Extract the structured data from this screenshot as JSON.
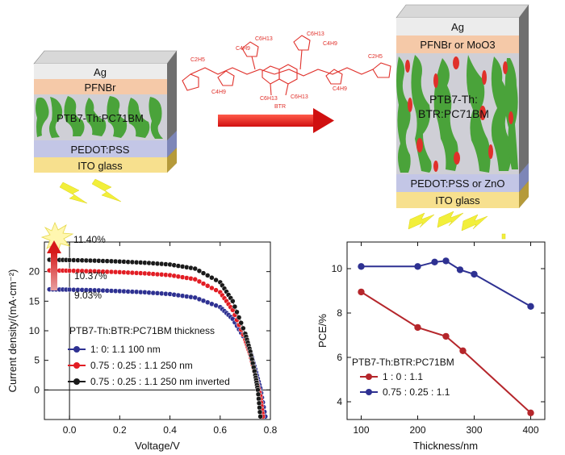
{
  "left_device": {
    "layers": [
      "Ag",
      "PFNBr",
      "PTB7-Th:PC71BM",
      "PEDOT:PSS",
      "ITO glass"
    ]
  },
  "right_device": {
    "layers": [
      "Ag",
      "PFNBr or MoO3",
      "PTB7-Th:",
      "BTR:PC71BM",
      "PEDOT:PSS or ZnO",
      "ITO glass"
    ]
  },
  "molecule": {
    "label": "BTR",
    "alkyl_label": "C6H13",
    "alkyl_label_alt": "C4H9",
    "alkyl_label_alt2": "C2H5"
  },
  "chart_data": [
    {
      "type": "line",
      "xlabel": "Voltage/V",
      "ylabel": "Current density/(mA·cm⁻²)",
      "xlim": [
        -0.1,
        0.8
      ],
      "ylim": [
        -5,
        25
      ],
      "xticks": [
        "0.0",
        "0.2",
        "0.4",
        "0.6",
        "0.8"
      ],
      "yticks": [
        "0",
        "5",
        "10",
        "15",
        "20"
      ],
      "legend_title": "PTB7-Th:BTR:PC71BM thickness",
      "legend_position": "middle-left",
      "annotations": [
        "11.40%",
        "10.37%",
        "9.03%"
      ],
      "series": [
        {
          "name": "1: 0: 1.1 100 nm",
          "color": "#2e3192",
          "x": [
            -0.08,
            0.0,
            0.1,
            0.2,
            0.3,
            0.4,
            0.5,
            0.6,
            0.65,
            0.7,
            0.72,
            0.74,
            0.76,
            0.78
          ],
          "y": [
            17.0,
            16.95,
            16.85,
            16.7,
            16.5,
            16.2,
            15.6,
            14.0,
            12.0,
            8.5,
            6.5,
            3.5,
            0.3,
            -4.5
          ]
        },
        {
          "name": "0.75 : 0.25 : 1.1 250 nm",
          "color": "#e21d24",
          "x": [
            -0.08,
            0.0,
            0.1,
            0.2,
            0.3,
            0.4,
            0.5,
            0.6,
            0.65,
            0.7,
            0.72,
            0.74,
            0.76,
            0.77
          ],
          "y": [
            20.2,
            20.15,
            20.05,
            19.9,
            19.7,
            19.4,
            18.7,
            16.5,
            13.5,
            8.5,
            6.0,
            2.5,
            -1.0,
            -4.5
          ]
        },
        {
          "name": "0.75 : 0.25 : 1.1 250 nm inverted",
          "color": "#1a1a1a",
          "x": [
            -0.08,
            0.0,
            0.1,
            0.2,
            0.3,
            0.4,
            0.5,
            0.6,
            0.65,
            0.7,
            0.72,
            0.74,
            0.75,
            0.76
          ],
          "y": [
            22.0,
            21.95,
            21.85,
            21.7,
            21.5,
            21.2,
            20.5,
            18.2,
            15.0,
            9.5,
            6.5,
            2.5,
            0.0,
            -4.5
          ]
        }
      ]
    },
    {
      "type": "line",
      "xlabel": "Thickness/nm",
      "ylabel": "PCE/%",
      "xlim": [
        75,
        425
      ],
      "ylim": [
        3.2,
        11.2
      ],
      "xticks": [
        "100",
        "200",
        "300",
        "400"
      ],
      "yticks": [
        "4",
        "6",
        "8",
        "10"
      ],
      "legend_title": "PTB7-Th:BTR:PC71BM",
      "legend_position": "bottom-left",
      "series": [
        {
          "name": "1 : 0 : 1.1",
          "color": "#b5262b",
          "x": [
            100,
            200,
            250,
            280,
            400
          ],
          "y": [
            8.95,
            7.35,
            6.95,
            6.3,
            3.5
          ]
        },
        {
          "name": "0.75 : 0.25 : 1.1",
          "color": "#2e3192",
          "x": [
            100,
            200,
            230,
            250,
            275,
            300,
            400
          ],
          "y": [
            10.1,
            10.1,
            10.3,
            10.35,
            9.95,
            9.75,
            8.3
          ]
        }
      ]
    }
  ]
}
